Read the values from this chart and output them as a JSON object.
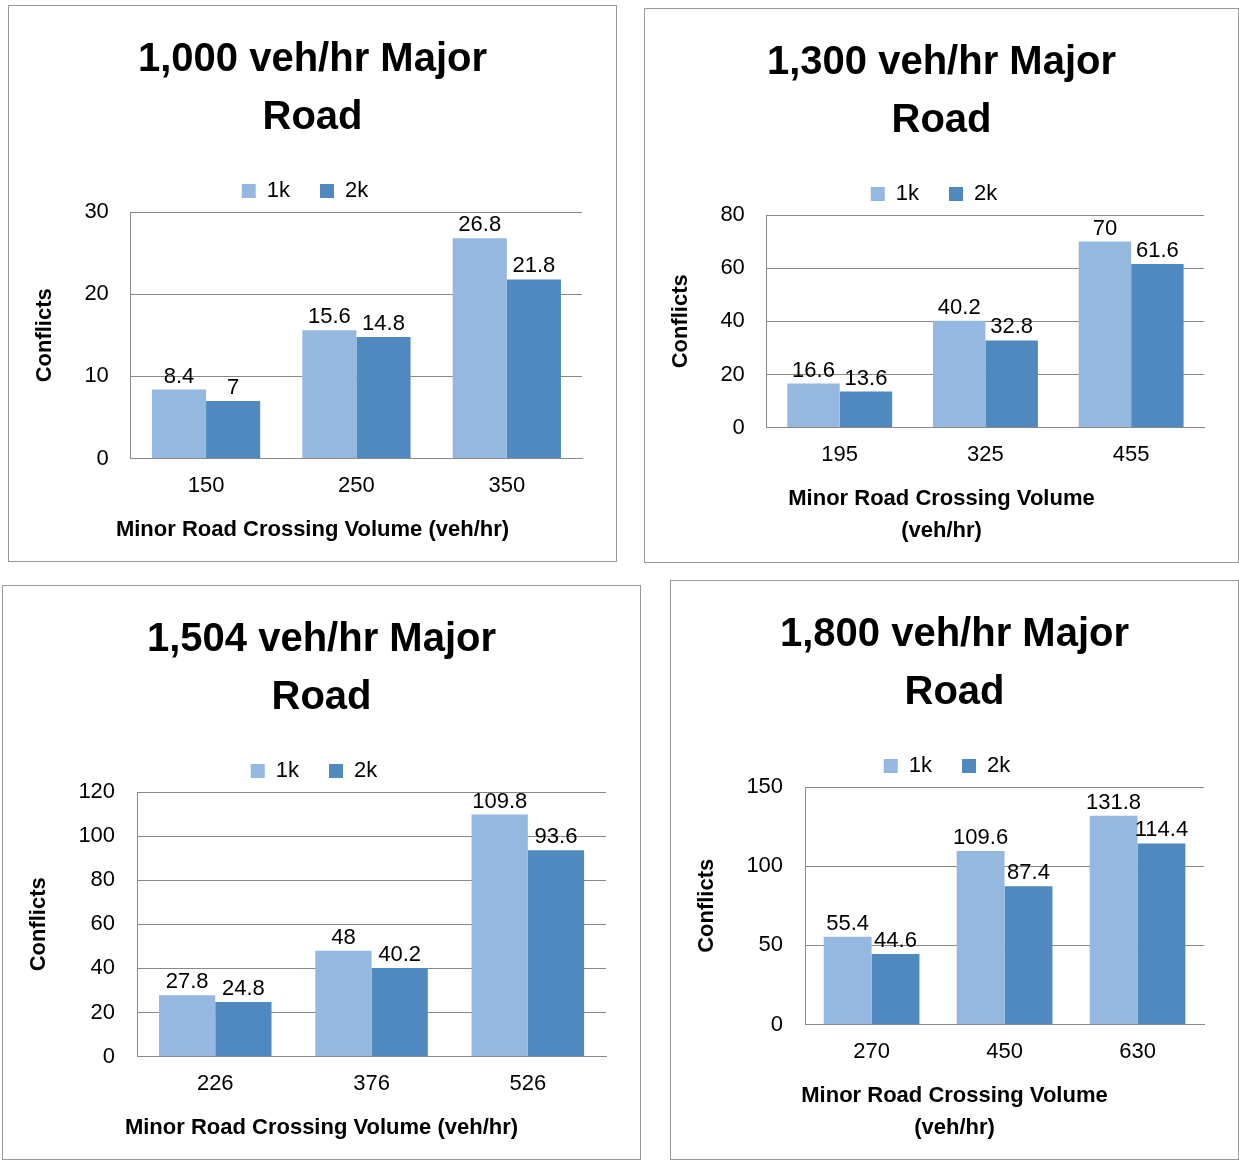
{
  "chart_data": [
    {
      "type": "bar",
      "title": "1,000 veh/hr Major Road",
      "xlabel": "Minor Road Crossing Volume (veh/hr)",
      "ylabel": "Conflicts",
      "categories": [
        "150",
        "250",
        "350"
      ],
      "series": [
        {
          "name": "1k",
          "color": "#95b8e0",
          "values": [
            8.4,
            15.6,
            26.8
          ]
        },
        {
          "name": "2k",
          "color": "#4f89bf",
          "values": [
            7,
            14.8,
            21.8
          ]
        }
      ],
      "ylim": [
        0,
        30
      ],
      "yticks": [
        0,
        10,
        20,
        30
      ],
      "grid": "y",
      "legend": "top",
      "data_labels": true
    },
    {
      "type": "bar",
      "title": "1,300 veh/hr Major Road",
      "xlabel": "Minor Road Crossing Volume (veh/hr)",
      "ylabel": "Conflicts",
      "categories": [
        "195",
        "325",
        "455"
      ],
      "series": [
        {
          "name": "1k",
          "color": "#95b8e0",
          "values": [
            16.6,
            40.2,
            70
          ]
        },
        {
          "name": "2k",
          "color": "#4f89bf",
          "values": [
            13.6,
            32.8,
            61.6
          ]
        }
      ],
      "ylim": [
        0,
        80
      ],
      "yticks": [
        0,
        20,
        40,
        60,
        80
      ],
      "grid": "y",
      "legend": "top",
      "data_labels": true
    },
    {
      "type": "bar",
      "title": "1,504 veh/hr Major Road",
      "xlabel": "Minor Road Crossing Volume (veh/hr)",
      "ylabel": "Conflicts",
      "categories": [
        "226",
        "376",
        "526"
      ],
      "series": [
        {
          "name": "1k",
          "color": "#95b8e0",
          "values": [
            27.8,
            48,
            109.8
          ]
        },
        {
          "name": "2k",
          "color": "#4f89bf",
          "values": [
            24.8,
            40.2,
            93.6
          ]
        }
      ],
      "ylim": [
        0,
        120
      ],
      "yticks": [
        0,
        20,
        40,
        60,
        80,
        100,
        120
      ],
      "grid": "y",
      "legend": "top",
      "data_labels": true
    },
    {
      "type": "bar",
      "title": "1,800 veh/hr Major Road",
      "xlabel": "Minor Road Crossing Volume (veh/hr)",
      "ylabel": "Conflicts",
      "categories": [
        "270",
        "450",
        "630"
      ],
      "series": [
        {
          "name": "1k",
          "color": "#95b8e0",
          "values": [
            55.4,
            109.6,
            131.8
          ]
        },
        {
          "name": "2k",
          "color": "#4f89bf",
          "values": [
            44.6,
            87.4,
            114.4
          ]
        }
      ],
      "ylim": [
        0,
        150
      ],
      "yticks": [
        0,
        50,
        100,
        150
      ],
      "grid": "y",
      "legend": "top",
      "data_labels": true
    }
  ]
}
